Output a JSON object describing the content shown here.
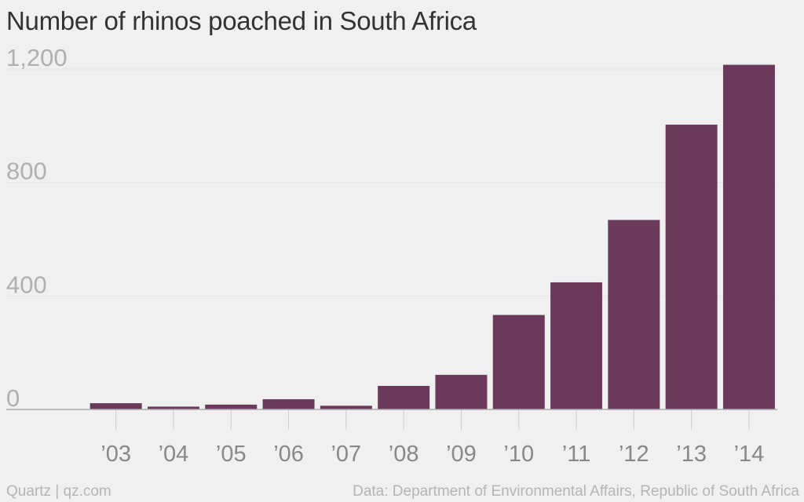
{
  "chart_data": {
    "type": "bar",
    "title": "Number of rhinos poached in South Africa",
    "categories": [
      "’03",
      "’04",
      "’05",
      "’06",
      "’07",
      "’08",
      "’09",
      "’10",
      "’11",
      "’12",
      "’13",
      "’14"
    ],
    "values": [
      22,
      10,
      17,
      36,
      13,
      83,
      122,
      333,
      448,
      668,
      1004,
      1215
    ],
    "yticks": [
      {
        "value": 0,
        "label": "0"
      },
      {
        "value": 400,
        "label": "400"
      },
      {
        "value": 800,
        "label": "800"
      },
      {
        "value": 1200,
        "label": "1,200"
      }
    ],
    "ylim": [
      0,
      1200
    ],
    "xlabel": "",
    "ylabel": "",
    "grid": true,
    "colors": {
      "bar": "#6b3a5a",
      "grid": "#e6e6e6",
      "baseline": "#aaaaaa"
    }
  },
  "footer": {
    "brand": "Quartz | qz.com",
    "source": "Data: Department of Environmental Affairs, Republic of South Africa"
  }
}
